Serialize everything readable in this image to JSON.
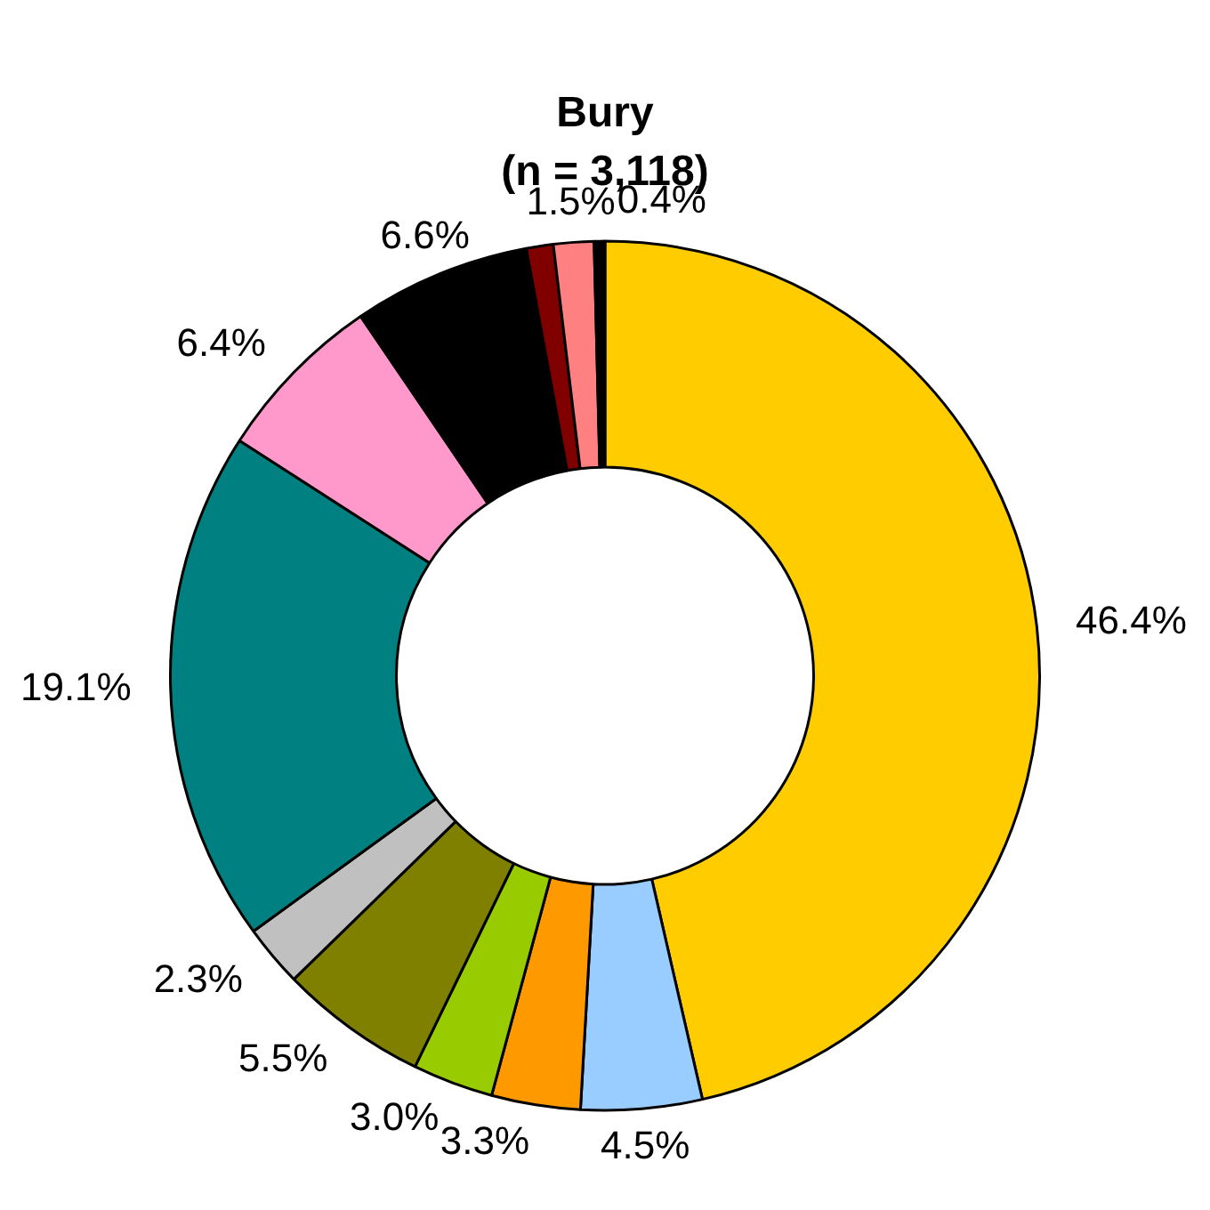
{
  "chart_data": {
    "type": "donut",
    "title": "Bury",
    "subtitle": "(n = 3,118)",
    "categories": [
      null,
      null,
      null,
      null,
      null,
      null,
      null,
      null,
      null,
      null,
      null,
      null
    ],
    "values": [
      46.4,
      4.5,
      3.3,
      3.0,
      5.5,
      2.3,
      19.1,
      6.4,
      6.6,
      1.0,
      1.5,
      0.4
    ],
    "value_labels": [
      "46.4%",
      "4.5%",
      "3.3%",
      "3.0%",
      "5.5%",
      "2.3%",
      "19.1%",
      "6.4%",
      "6.6%",
      null,
      "1.5%",
      "0.4%"
    ],
    "colors": [
      "#ffcc00",
      "#99ccff",
      "#ff9900",
      "#99cc00",
      "#808000",
      "#c0c0c0",
      "#008080",
      "#ff99cc",
      "#000000",
      "#800000",
      "#ff8080",
      "#000000"
    ],
    "legend": false
  }
}
